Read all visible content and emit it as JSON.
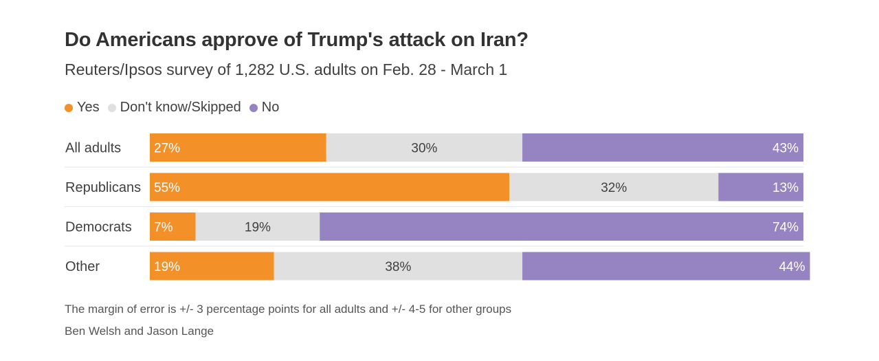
{
  "chart_data": {
    "type": "bar",
    "orientation": "horizontal-stacked-100",
    "title": "Do Americans approve of Trump's attack on Iran?",
    "subtitle": "Reuters/Ipsos survey of 1,282 U.S. adults on Feb. 28 - March 1",
    "legend_position": "top-left",
    "categories": [
      "All adults",
      "Republicans",
      "Democrats",
      "Other"
    ],
    "series": [
      {
        "name": "Yes",
        "color": "#f39128",
        "label_color": "#ffffff",
        "values": [
          27,
          55,
          7,
          19
        ],
        "labels": [
          "27%",
          "55%",
          "7%",
          "19%"
        ],
        "label_align": "start"
      },
      {
        "name": "Don't know/Skipped",
        "color": "#e0e0e0",
        "label_color": "#404040",
        "values": [
          30,
          32,
          19,
          38
        ],
        "labels": [
          "30%",
          "32%",
          "19%",
          "38%"
        ],
        "label_align": "middle"
      },
      {
        "name": "No",
        "color": "#9583c2",
        "label_color": "#ffffff",
        "values": [
          43,
          13,
          74,
          44
        ],
        "labels": [
          "43%",
          "13%",
          "74%",
          "44%"
        ],
        "label_align": "end"
      }
    ],
    "xlim": [
      0,
      100
    ],
    "note": "The margin of error is +/- 3 percentage points for all adults and +/- 4-5 for other groups",
    "credit": "Ben Welsh and Jason Lange"
  }
}
